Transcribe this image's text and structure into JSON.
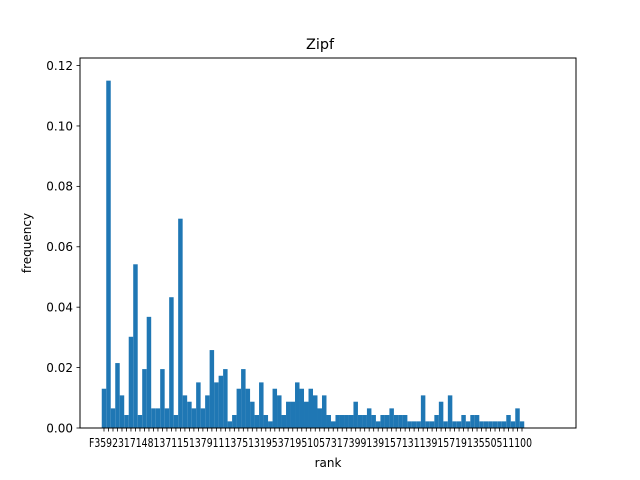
{
  "chart_data": {
    "type": "bar",
    "title": "Zipf",
    "xlabel": "rank",
    "ylabel": "frequency",
    "ylim": [
      0,
      0.1225
    ],
    "yticks": [
      "0.00",
      "0.02",
      "0.04",
      "0.06",
      "0.08",
      "0.10",
      "0.12"
    ],
    "xtick_text": "F35923171481371151379111375131953719510573173991391571311391571913550511100",
    "bar_color": "#1f77b4",
    "values": [
      0.013,
      0.115,
      0.0065,
      0.0215,
      0.0108,
      0.0043,
      0.0302,
      0.0542,
      0.0043,
      0.0195,
      0.0368,
      0.0065,
      0.0065,
      0.0195,
      0.0065,
      0.0433,
      0.0043,
      0.0693,
      0.0108,
      0.0087,
      0.0065,
      0.0151,
      0.0065,
      0.0108,
      0.0258,
      0.0151,
      0.0173,
      0.0195,
      0.0022,
      0.0043,
      0.013,
      0.0195,
      0.013,
      0.0087,
      0.0043,
      0.0151,
      0.0043,
      0.0022,
      0.013,
      0.0108,
      0.0043,
      0.0087,
      0.0087,
      0.0151,
      0.013,
      0.0087,
      0.013,
      0.0108,
      0.0065,
      0.0108,
      0.0043,
      0.0022,
      0.0043,
      0.0043,
      0.0043,
      0.0043,
      0.0087,
      0.0043,
      0.0043,
      0.0065,
      0.0043,
      0.0022,
      0.0043,
      0.0043,
      0.0065,
      0.0043,
      0.0043,
      0.0043,
      0.0022,
      0.0022,
      0.0022,
      0.0108,
      0.0022,
      0.0022,
      0.0043,
      0.0087,
      0.0022,
      0.0108,
      0.0022,
      0.0022,
      0.0043,
      0.0022,
      0.0043,
      0.0043,
      0.0022,
      0.0022,
      0.0022,
      0.0022,
      0.0022,
      0.0022,
      0.0043,
      0.0022,
      0.0065,
      0.0022
    ],
    "grid": false,
    "legend": "none"
  }
}
